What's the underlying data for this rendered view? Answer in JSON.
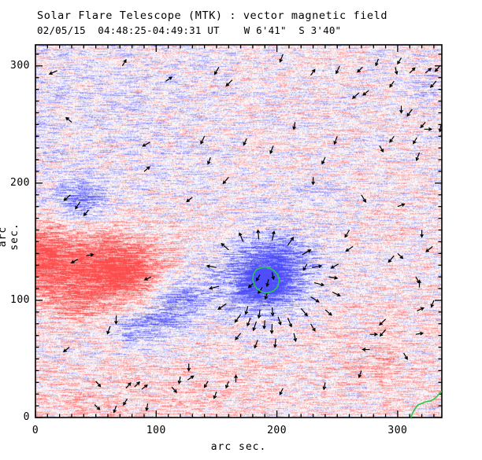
{
  "title": "Solar Flare Telescope (MTK) : vector magnetic field",
  "subtitle": "02/05/15  04:48:25-04:49:31 UT    W 6'41\"  S 3'40\"",
  "chart_data": {
    "type": "heatmap",
    "title": "Solar Flare Telescope (MTK) : vector magnetic field",
    "subtitle": "02/05/15  04:48:25-04:49:31 UT    W 6'41\"  S 3'40\"",
    "xlabel": "arc sec.",
    "ylabel": "arc sec.",
    "xlim": [
      0,
      336.6
    ],
    "ylim": [
      0,
      318
    ],
    "x_major_ticks": [
      0,
      100,
      200,
      300
    ],
    "y_major_ticks": [
      0,
      100,
      200,
      300
    ],
    "minor_tick_step": 10,
    "grid": false,
    "colors": {
      "positive_polarity": "#f86868",
      "negative_polarity": "#5a5ae6",
      "contour_green": "#28c84b",
      "vector_black": "#000000",
      "axis": "#000000",
      "background": "#ffffff"
    },
    "polarity_regions": [
      {
        "name": "positive-main",
        "x": 55,
        "y": 130,
        "sx": 33,
        "sy": 20,
        "amp": 0.95
      },
      {
        "name": "positive-main-core-ext",
        "x": 78,
        "y": 118,
        "sx": 18,
        "sy": 14,
        "amp": 0.45
      },
      {
        "name": "positive-left-edge",
        "x": 5,
        "y": 138,
        "sx": 16,
        "sy": 22,
        "amp": 0.75
      },
      {
        "name": "positive-lower-ext",
        "x": 35,
        "y": 98,
        "sx": 16,
        "sy": 13,
        "amp": 0.4
      },
      {
        "name": "positive-faint-right-bottom",
        "x": 285,
        "y": 47,
        "sx": 14,
        "sy": 10,
        "amp": 0.25
      },
      {
        "name": "negative-main",
        "x": 189,
        "y": 117,
        "sx": 26,
        "sy": 21,
        "amp": -0.95
      },
      {
        "name": "negative-main-core",
        "x": 189,
        "y": 116,
        "sx": 11,
        "sy": 10,
        "amp": -0.55
      },
      {
        "name": "negative-main-upper-ext",
        "x": 205,
        "y": 140,
        "sx": 22,
        "sy": 13,
        "amp": -0.35
      },
      {
        "name": "negative-mid",
        "x": 117,
        "y": 99,
        "sx": 17,
        "sy": 14,
        "amp": -0.65
      },
      {
        "name": "negative-small-low",
        "x": 79,
        "y": 74,
        "sx": 12,
        "sy": 10,
        "amp": -0.45
      },
      {
        "name": "negative-small-low2",
        "x": 100,
        "y": 80,
        "sx": 12,
        "sy": 10,
        "amp": -0.35
      },
      {
        "name": "negative-upper-left",
        "x": 36,
        "y": 186,
        "sx": 14,
        "sy": 11,
        "amp": -0.6
      },
      {
        "name": "negative-faint-right",
        "x": 235,
        "y": 188,
        "sx": 16,
        "sy": 12,
        "amp": -0.18
      },
      {
        "name": "negative-faint-top-right",
        "x": 322,
        "y": 282,
        "sx": 14,
        "sy": 10,
        "amp": -0.18
      }
    ],
    "background_tints": [
      {
        "name": "tint-pink-bottom-band",
        "x": 170,
        "y": 25,
        "sx": 200,
        "sy": 40,
        "amp": 0.14
      },
      {
        "name": "tint-pink-bottom-left",
        "x": 60,
        "y": 8,
        "sx": 80,
        "sy": 18,
        "amp": 0.12
      },
      {
        "name": "tint-blue-upper-left",
        "x": 60,
        "y": 255,
        "sx": 80,
        "sy": 55,
        "amp": -0.12
      },
      {
        "name": "tint-pink-right-mid",
        "x": 300,
        "y": 120,
        "sx": 70,
        "sy": 60,
        "amp": 0.07
      },
      {
        "name": "tint-pink-top-mid",
        "x": 180,
        "y": 270,
        "sx": 120,
        "sy": 50,
        "amp": 0.05
      },
      {
        "name": "tint-pink-between",
        "x": 100,
        "y": 160,
        "sx": 50,
        "sy": 20,
        "amp": 0.06
      }
    ],
    "vectors": [
      [
        160,
        143,
        137,
        8
      ],
      [
        172,
        150,
        112,
        8
      ],
      [
        185,
        152,
        95,
        8
      ],
      [
        150,
        128,
        170,
        8
      ],
      [
        152,
        112,
        195,
        8
      ],
      [
        158,
        97,
        215,
        8
      ],
      [
        170,
        88,
        235,
        8
      ],
      [
        183,
        82,
        252,
        8
      ],
      [
        196,
        80,
        268,
        8
      ],
      [
        209,
        85,
        292,
        8
      ],
      [
        220,
        93,
        310,
        8
      ],
      [
        228,
        103,
        327,
        8
      ],
      [
        231,
        115,
        345,
        8
      ],
      [
        229,
        128,
        10,
        8
      ],
      [
        221,
        139,
        30,
        8
      ],
      [
        209,
        147,
        55,
        8
      ],
      [
        196,
        151,
        78,
        8
      ],
      [
        243,
        120,
        350,
        7
      ],
      [
        246,
        107,
        333,
        7
      ],
      [
        240,
        92,
        318,
        7
      ],
      [
        228,
        80,
        300,
        7
      ],
      [
        214,
        72,
        283,
        7
      ],
      [
        199,
        67,
        265,
        7
      ],
      [
        184,
        66,
        250,
        7
      ],
      [
        170,
        72,
        232,
        7
      ],
      [
        186,
        122,
        240,
        6
      ],
      [
        193,
        118,
        258,
        6
      ],
      [
        188,
        111,
        235,
        6
      ],
      [
        196,
        124,
        282,
        6
      ],
      [
        181,
        115,
        222,
        6
      ],
      [
        192,
        107,
        255,
        6
      ],
      [
        176,
        95,
        255,
        7
      ],
      [
        186,
        92,
        262,
        7
      ],
      [
        196,
        94,
        275,
        7
      ],
      [
        178,
        85,
        250,
        7
      ],
      [
        190,
        83,
        265,
        7
      ],
      [
        201,
        86,
        287,
        7
      ],
      [
        29,
        190,
        222,
        7
      ],
      [
        37,
        184,
        237,
        7
      ],
      [
        44,
        177,
        230,
        6
      ],
      [
        0,
        46,
        200,
        6
      ],
      [
        35,
        135,
        210,
        6
      ],
      [
        42,
        138,
        10,
        6
      ],
      [
        62,
        78,
        250,
        7
      ],
      [
        67,
        87,
        268,
        7
      ],
      [
        50,
        31,
        310,
        6
      ],
      [
        49,
        11,
        315,
        6
      ],
      [
        67,
        10,
        250,
        6
      ],
      [
        96,
        120,
        205,
        6
      ],
      [
        75,
        25,
        50,
        6
      ],
      [
        82,
        26,
        45,
        6
      ],
      [
        88,
        24,
        40,
        6
      ],
      [
        76,
        16,
        240,
        6
      ],
      [
        93,
        12,
        260,
        6
      ],
      [
        113,
        26,
        310,
        6
      ],
      [
        126,
        32,
        35,
        6
      ],
      [
        127,
        46,
        270,
        6
      ],
      [
        143,
        31,
        240,
        6
      ],
      [
        160,
        31,
        250,
        6
      ],
      [
        166,
        30,
        90,
        6
      ],
      [
        150,
        22,
        250,
        6
      ],
      [
        120,
        35,
        260,
        6
      ],
      [
        28,
        60,
        220,
        6
      ],
      [
        263,
        146,
        215,
        7
      ],
      [
        297,
        138,
        230,
        7
      ],
      [
        251,
        131,
        210,
        7
      ],
      [
        329,
        146,
        220,
        7
      ],
      [
        318,
        111,
        90,
        6
      ],
      [
        316,
        91,
        25,
        6
      ],
      [
        290,
        84,
        225,
        7
      ],
      [
        277,
        71,
        0,
        6
      ],
      [
        315,
        71,
        10,
        6
      ],
      [
        277,
        58,
        180,
        6
      ],
      [
        225,
        131,
        240,
        6
      ],
      [
        18,
        296,
        205,
        7
      ],
      [
        72,
        300,
        60,
        6
      ],
      [
        108,
        287,
        35,
        6
      ],
      [
        152,
        299,
        240,
        7
      ],
      [
        163,
        288,
        225,
        7
      ],
      [
        205,
        310,
        250,
        7
      ],
      [
        228,
        292,
        55,
        6
      ],
      [
        252,
        300,
        245,
        7
      ],
      [
        268,
        277,
        222,
        7
      ],
      [
        298,
        299,
        283,
        6
      ],
      [
        312,
        263,
        235,
        7
      ],
      [
        332,
        287,
        228,
        7
      ],
      [
        30,
        252,
        140,
        6
      ],
      [
        95,
        235,
        210,
        7
      ],
      [
        140,
        240,
        245,
        7
      ],
      [
        197,
        232,
        250,
        7
      ],
      [
        250,
        240,
        250,
        7
      ],
      [
        285,
        232,
        300,
        6
      ],
      [
        318,
        226,
        250,
        7
      ],
      [
        90,
        210,
        40,
        6
      ],
      [
        160,
        205,
        230,
        7
      ],
      [
        230,
        205,
        270,
        6
      ],
      [
        270,
        190,
        300,
        7
      ],
      [
        300,
        180,
        20,
        6
      ],
      [
        320,
        160,
        270,
        6
      ],
      [
        260,
        160,
        240,
        7
      ],
      [
        335,
        300,
        230,
        6
      ],
      [
        336,
        250,
        260,
        6
      ],
      [
        300,
        140,
        315,
        6
      ],
      [
        315,
        120,
        300,
        6
      ],
      [
        330,
        100,
        250,
        6
      ],
      [
        290,
        75,
        230,
        7
      ],
      [
        305,
        55,
        300,
        6
      ],
      [
        270,
        40,
        250,
        6
      ],
      [
        240,
        30,
        260,
        6
      ],
      [
        205,
        25,
        245,
        6
      ],
      [
        130,
        188,
        220,
        6
      ],
      [
        145,
        222,
        250,
        6
      ],
      [
        175,
        238,
        245,
        6
      ],
      [
        215,
        252,
        260,
        6
      ],
      [
        240,
        222,
        245,
        6
      ],
      [
        284,
        306,
        250,
        6
      ],
      [
        303,
        307,
        240,
        6
      ],
      [
        271,
        299,
        225,
        6
      ],
      [
        310,
        294,
        45,
        6
      ],
      [
        323,
        294,
        40,
        6
      ],
      [
        297,
        287,
        235,
        6
      ],
      [
        276,
        279,
        220,
        6
      ],
      [
        303,
        266,
        270,
        6
      ],
      [
        323,
        252,
        230,
        6
      ],
      [
        322,
        246,
        0,
        6
      ],
      [
        297,
        240,
        235,
        6
      ],
      [
        316,
        239,
        240,
        6
      ]
    ],
    "contour": {
      "name": "umbra-contour",
      "color": "#28c84b",
      "center": [
        190.5,
        117.5
      ],
      "points": [
        [
          202.0,
          117.5
        ],
        [
          200.5,
          122.1
        ],
        [
          197.3,
          125.5
        ],
        [
          193.3,
          127.9
        ],
        [
          188.6,
          128.5
        ],
        [
          183.1,
          126.3
        ],
        [
          180.5,
          122.1
        ],
        [
          180.0,
          117.5
        ],
        [
          181.3,
          113.2
        ],
        [
          183.8,
          109.5
        ],
        [
          187.7,
          107.1
        ],
        [
          192.5,
          106.4
        ],
        [
          197.2,
          108.0
        ],
        [
          200.7,
          111.6
        ]
      ]
    },
    "neutral_line": {
      "name": "green-curve-bottom-right",
      "color": "#28c84b",
      "points": [
        [
          311,
          0
        ],
        [
          312,
          3
        ],
        [
          314,
          7
        ],
        [
          316.5,
          10.5
        ],
        [
          322,
          13
        ],
        [
          328,
          14.5
        ],
        [
          331,
          16.5
        ],
        [
          333,
          18.5
        ],
        [
          335,
          21
        ],
        [
          336.6,
          22.5
        ]
      ]
    },
    "texture": {
      "seed": 1234,
      "streak_amp": 0.85,
      "pixel_amp": 0.55,
      "row_bias": 0.22
    }
  }
}
